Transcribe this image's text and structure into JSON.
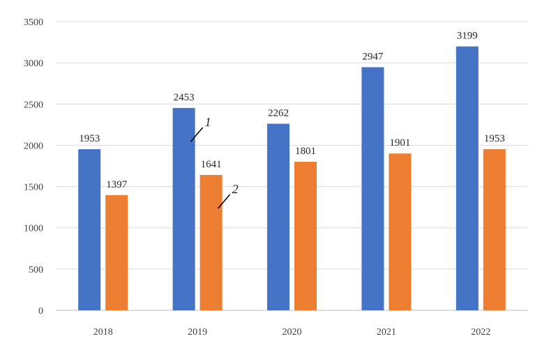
{
  "chart_data": {
    "type": "bar",
    "categories": [
      "2018",
      "2019",
      "2020",
      "2021",
      "2022"
    ],
    "series": [
      {
        "values": [
          1953,
          2453,
          2262,
          2947,
          3199
        ],
        "color": "#4472C4"
      },
      {
        "values": [
          1397,
          1641,
          1801,
          1901,
          1953
        ],
        "color": "#ED7D31"
      }
    ],
    "ylim": [
      0,
      3500
    ],
    "yticks": [
      0,
      500,
      1000,
      1500,
      2000,
      2500,
      3000,
      3500
    ],
    "grid": true,
    "annotations": [
      {
        "text": "1",
        "series": 0,
        "category": "2019"
      },
      {
        "text": "2",
        "series": 1,
        "category": "2019"
      }
    ]
  }
}
